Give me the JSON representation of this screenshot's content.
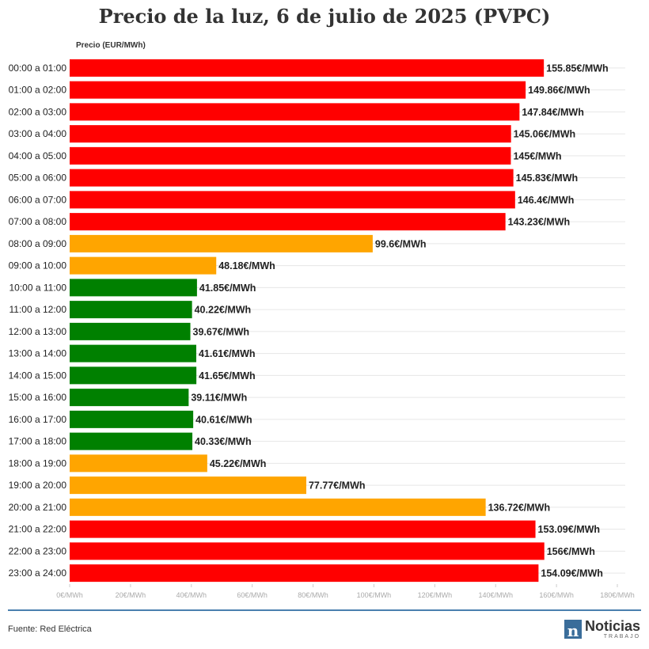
{
  "title": "Precio de la luz, 6 de julio de 2025 (PVPC)",
  "source": "Fuente: Red Eléctrica",
  "logo": {
    "brand": "Noticias",
    "sub": "TRABAJO",
    "mark": "n"
  },
  "colors": {
    "high": "#ff0000",
    "medium": "#ffa500",
    "low": "#008000",
    "rule": "#4a7fae"
  },
  "chart_data": {
    "type": "bar",
    "orientation": "horizontal",
    "title": "Precio de la luz, 6 de julio de 2025 (PVPC)",
    "ylabel": "Precio (EUR/MWh)",
    "value_suffix": "€/MWh",
    "xlim": [
      0,
      180
    ],
    "x_ticks": [
      0,
      20,
      40,
      60,
      80,
      100,
      120,
      140,
      160,
      180
    ],
    "x_tick_labels": [
      "0€/MWh",
      "20€/MWh",
      "40€/MWh",
      "60€/MWh",
      "80€/MWh",
      "100€/MWh",
      "120€/MWh",
      "140€/MWh",
      "160€/MWh",
      "180€/MWh"
    ],
    "grid": true,
    "categories": [
      "00:00 a 01:00",
      "01:00 a 02:00",
      "02:00 a 03:00",
      "03:00 a 04:00",
      "04:00 a 05:00",
      "05:00 a 06:00",
      "06:00 a 07:00",
      "07:00 a 08:00",
      "08:00 a 09:00",
      "09:00 a 10:00",
      "10:00 a 11:00",
      "11:00 a 12:00",
      "12:00 a 13:00",
      "13:00 a 14:00",
      "14:00 a 15:00",
      "15:00 a 16:00",
      "16:00 a 17:00",
      "17:00 a 18:00",
      "18:00 a 19:00",
      "19:00 a 20:00",
      "20:00 a 21:00",
      "21:00 a 22:00",
      "22:00 a 23:00",
      "23:00 a 24:00"
    ],
    "values": [
      155.85,
      149.86,
      147.84,
      145.06,
      145,
      145.83,
      146.4,
      143.23,
      99.6,
      48.18,
      41.85,
      40.22,
      39.67,
      41.61,
      41.65,
      39.11,
      40.61,
      40.33,
      45.22,
      77.77,
      136.72,
      153.09,
      156,
      154.09
    ],
    "value_labels": [
      "155.85€/MWh",
      "149.86€/MWh",
      "147.84€/MWh",
      "145.06€/MWh",
      "145€/MWh",
      "145.83€/MWh",
      "146.4€/MWh",
      "143.23€/MWh",
      "99.6€/MWh",
      "48.18€/MWh",
      "41.85€/MWh",
      "40.22€/MWh",
      "39.67€/MWh",
      "41.61€/MWh",
      "41.65€/MWh",
      "39.11€/MWh",
      "40.61€/MWh",
      "40.33€/MWh",
      "45.22€/MWh",
      "77.77€/MWh",
      "136.72€/MWh",
      "153.09€/MWh",
      "156€/MWh",
      "154.09€/MWh"
    ],
    "levels": [
      "high",
      "high",
      "high",
      "high",
      "high",
      "high",
      "high",
      "high",
      "medium",
      "medium",
      "low",
      "low",
      "low",
      "low",
      "low",
      "low",
      "low",
      "low",
      "medium",
      "medium",
      "medium",
      "high",
      "high",
      "high"
    ]
  }
}
